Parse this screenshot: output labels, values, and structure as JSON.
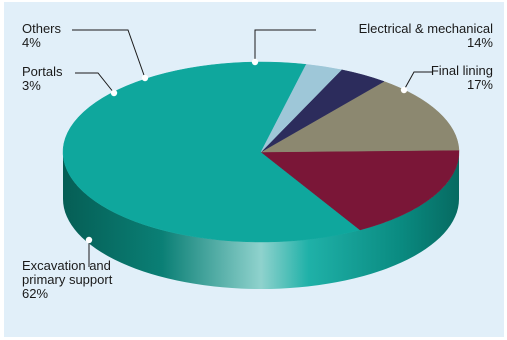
{
  "chart_data": {
    "type": "pie",
    "style": "3d",
    "title": "",
    "categories": [
      "Excavation and primary support",
      "Final lining",
      "Electrical & mechanical",
      "Others",
      "Portals"
    ],
    "values": [
      62,
      17,
      14,
      4,
      3
    ],
    "colors": [
      "#0fa79d",
      "#7a1637",
      "#8c8870",
      "#2c2c5c",
      "#9ec7d8"
    ],
    "labels": [
      {
        "lines": [
          "Excavation and",
          "primary support"
        ],
        "value": "62%"
      },
      {
        "lines": [
          "Final lining"
        ],
        "value": "17%"
      },
      {
        "lines": [
          "Electrical & mechanical"
        ],
        "value": "14%"
      },
      {
        "lines": [
          "Others"
        ],
        "value": "4%"
      },
      {
        "lines": [
          "Portals"
        ],
        "value": "3%"
      }
    ],
    "legend": "none",
    "background": "#e1eff9"
  }
}
